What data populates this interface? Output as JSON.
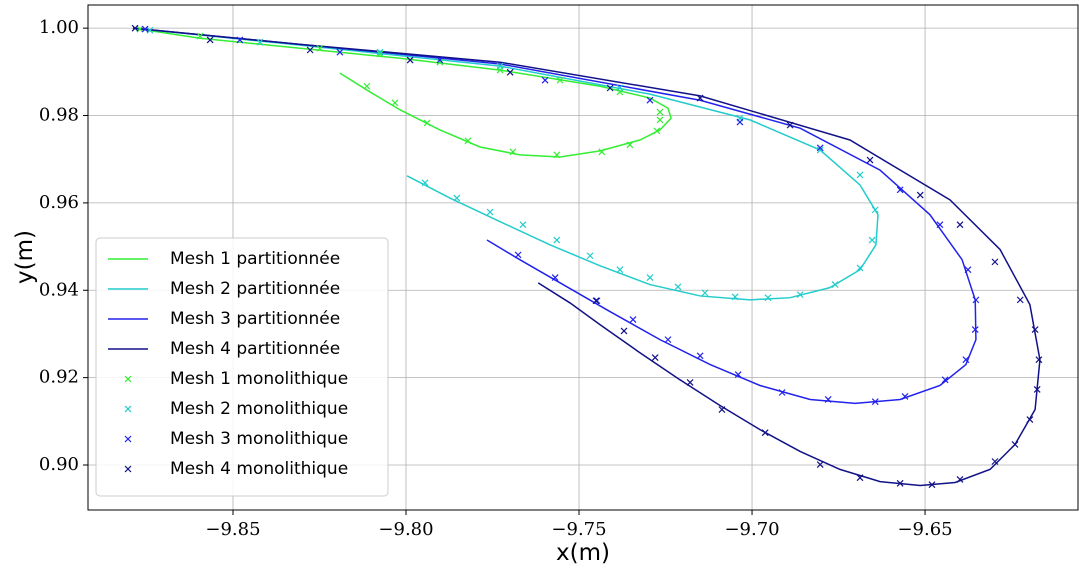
{
  "chart_data": {
    "type": "line",
    "xlabel": "x(m)",
    "ylabel": "y(m)",
    "xlim": [
      -9.8919,
      -9.6058
    ],
    "ylim": [
      0.8897,
      1.0053
    ],
    "xticks": [
      {
        "value": -9.85,
        "label": "−9.85"
      },
      {
        "value": -9.8,
        "label": "−9.80"
      },
      {
        "value": -9.75,
        "label": "−9.75"
      },
      {
        "value": -9.7,
        "label": "−9.70"
      },
      {
        "value": -9.65,
        "label": "−9.65"
      }
    ],
    "yticks": [
      {
        "value": 0.9,
        "label": "0.90"
      },
      0.92,
      0.94,
      0.96,
      0.98,
      {
        "value": 1.0,
        "label": "1.00"
      }
    ],
    "grid": true,
    "legend": "lower left",
    "series": [
      {
        "name": "Mesh 1 partitionnée",
        "type": "line",
        "color": "#33ee33",
        "x": [
          -9.8789,
          -9.8595,
          -9.8306,
          -9.8017,
          -9.7728,
          -9.7439,
          -9.7295,
          -9.7243,
          -9.7234,
          -9.7266,
          -9.7324,
          -9.7439,
          -9.7555,
          -9.7671,
          -9.7786,
          -9.7902,
          -9.8017,
          -9.8104,
          -9.8191
        ],
        "y": [
          1.0,
          0.9977,
          0.9954,
          0.9931,
          0.9904,
          0.9867,
          0.984,
          0.9817,
          0.9794,
          0.9767,
          0.9744,
          0.9719,
          0.9705,
          0.971,
          0.9728,
          0.9767,
          0.9813,
          0.9854,
          0.9897
        ]
      },
      {
        "name": "Mesh 2 partitionnée",
        "type": "line",
        "color": "#22cccc",
        "x": [
          -9.8789,
          -9.8306,
          -9.7728,
          -9.7295,
          -9.7006,
          -9.6803,
          -9.6688,
          -9.6636,
          -9.6642,
          -9.6688,
          -9.6775,
          -9.689,
          -9.7006,
          -9.715,
          -9.7295,
          -9.7439,
          -9.7584,
          -9.7728,
          -9.7873,
          -9.7997
        ],
        "y": [
          1.0,
          0.9961,
          0.9913,
          0.9849,
          0.979,
          0.9721,
          0.9641,
          0.9573,
          0.9504,
          0.9447,
          0.9406,
          0.9383,
          0.9378,
          0.9387,
          0.9413,
          0.9456,
          0.9504,
          0.9557,
          0.9611,
          0.9662
        ]
      },
      {
        "name": "Mesh 3 partitionnée",
        "type": "line",
        "color": "#2222ee",
        "x": [
          -9.8789,
          -9.8306,
          -9.7728,
          -9.715,
          -9.6861,
          -9.663,
          -9.6486,
          -9.6393,
          -9.6355,
          -9.6353,
          -9.6382,
          -9.6457,
          -9.6572,
          -9.6702,
          -9.6832,
          -9.6977,
          -9.7121,
          -9.7266,
          -9.741,
          -9.7555,
          -9.7671,
          -9.7766
        ],
        "y": [
          1.0,
          0.9963,
          0.9918,
          0.9835,
          0.9771,
          0.9675,
          0.9573,
          0.947,
          0.9378,
          0.9287,
          0.923,
          0.9182,
          0.915,
          0.9141,
          0.915,
          0.9182,
          0.923,
          0.9287,
          0.9351,
          0.9417,
          0.947,
          0.9515
        ]
      },
      {
        "name": "Mesh 4 partitionnée",
        "type": "line",
        "color": "#111188",
        "x": [
          -9.8789,
          -9.8306,
          -9.7728,
          -9.715,
          -9.6717,
          -9.6428,
          -9.6283,
          -9.6197,
          -9.6168,
          -9.6182,
          -9.624,
          -9.6312,
          -9.6413,
          -9.6514,
          -9.663,
          -9.6746,
          -9.6861,
          -9.6977,
          -9.7092,
          -9.7208,
          -9.7324,
          -9.7439,
          -9.7526,
          -9.7618
        ],
        "y": [
          1.0,
          0.9963,
          0.9922,
          0.9845,
          0.9744,
          0.9607,
          0.9493,
          0.9367,
          0.9241,
          0.9127,
          0.9047,
          0.899,
          0.896,
          0.8953,
          0.8962,
          0.899,
          0.9031,
          0.9081,
          0.9136,
          0.9195,
          0.9257,
          0.9321,
          0.9371,
          0.9417
        ]
      },
      {
        "name": "Mesh 1 monolithique",
        "type": "scatter",
        "color": "#33ee33",
        "x": [
          -9.8769,
          -9.8595,
          -9.8422,
          -9.8249,
          -9.8075,
          -9.7902,
          -9.7728,
          -9.7555,
          -9.7382,
          -9.7266,
          -9.7266,
          -9.7275,
          -9.7353,
          -9.7434,
          -9.7564,
          -9.7691,
          -9.7821,
          -9.7939,
          -9.8032,
          -9.8113
        ],
        "y": [
          0.9998,
          0.9982,
          0.9968,
          0.9954,
          0.9941,
          0.9922,
          0.9904,
          0.9881,
          0.9854,
          0.9808,
          0.979,
          0.9765,
          0.9733,
          0.9717,
          0.971,
          0.9717,
          0.9742,
          0.9783,
          0.9829,
          0.9867
        ]
      },
      {
        "name": "Mesh 2 monolithique",
        "type": "scatter",
        "color": "#22cccc",
        "x": [
          -9.874,
          -9.8422,
          -9.8075,
          -9.7728,
          -9.7382,
          -9.7035,
          -9.6803,
          -9.6688,
          -9.6644,
          -9.6653,
          -9.6688,
          -9.676,
          -9.6861,
          -9.6954,
          -9.7049,
          -9.7136,
          -9.7214,
          -9.7295,
          -9.7382,
          -9.7468,
          -9.7564,
          -9.7662,
          -9.7757,
          -9.7853,
          -9.7945
        ],
        "y": [
          0.9995,
          0.9968,
          0.9945,
          0.9913,
          0.9863,
          0.9794,
          0.9721,
          0.9664,
          0.9584,
          0.9515,
          0.9451,
          0.9413,
          0.939,
          0.9383,
          0.9385,
          0.9394,
          0.9408,
          0.9429,
          0.9447,
          0.9479,
          0.9515,
          0.955,
          0.9579,
          0.9611,
          0.9646
        ]
      },
      {
        "name": "Mesh 3 monolithique",
        "type": "scatter",
        "color": "#2222ee",
        "x": [
          -9.8754,
          -9.848,
          -9.8191,
          -9.7902,
          -9.7598,
          -9.7295,
          -9.7035,
          -9.6803,
          -9.6572,
          -9.6457,
          -9.6376,
          -9.6353,
          -9.6355,
          -9.6382,
          -9.6442,
          -9.6558,
          -9.6644,
          -9.678,
          -9.6913,
          -9.704,
          -9.715,
          -9.7243,
          -9.7344,
          -9.7448,
          -9.7569,
          -9.7676
        ],
        "y": [
          0.9998,
          0.9973,
          0.9945,
          0.9927,
          0.9881,
          0.9835,
          0.9785,
          0.9726,
          0.963,
          0.955,
          0.9447,
          0.9378,
          0.931,
          0.9241,
          0.9195,
          0.9157,
          0.9145,
          0.915,
          0.9166,
          0.9207,
          0.925,
          0.9287,
          0.9333,
          0.9376,
          0.9429,
          0.9481
        ]
      },
      {
        "name": "Mesh 4 monolithique",
        "type": "scatter",
        "color": "#111188",
        "x": [
          -9.8783,
          -9.8566,
          -9.8277,
          -9.7988,
          -9.7699,
          -9.741,
          -9.715,
          -9.689,
          -9.6659,
          -9.6514,
          -9.6399,
          -9.6298,
          -9.6225,
          -9.6182,
          -9.6171,
          -9.6176,
          -9.6197,
          -9.624,
          -9.6298,
          -9.6399,
          -9.648,
          -9.6572,
          -9.6688,
          -9.6803,
          -9.6962,
          -9.7087,
          -9.7179,
          -9.728,
          -9.737,
          -9.7451
        ],
        "y": [
          1.0,
          0.9973,
          0.995,
          0.9927,
          0.9899,
          0.9863,
          0.984,
          0.9778,
          0.9698,
          0.9618,
          0.955,
          0.9465,
          0.9378,
          0.931,
          0.9241,
          0.9173,
          0.9104,
          0.9047,
          0.9008,
          0.8967,
          0.8955,
          0.8958,
          0.8971,
          0.9001,
          0.9074,
          0.9127,
          0.9189,
          0.9246,
          0.9307,
          0.9376
        ]
      }
    ]
  }
}
